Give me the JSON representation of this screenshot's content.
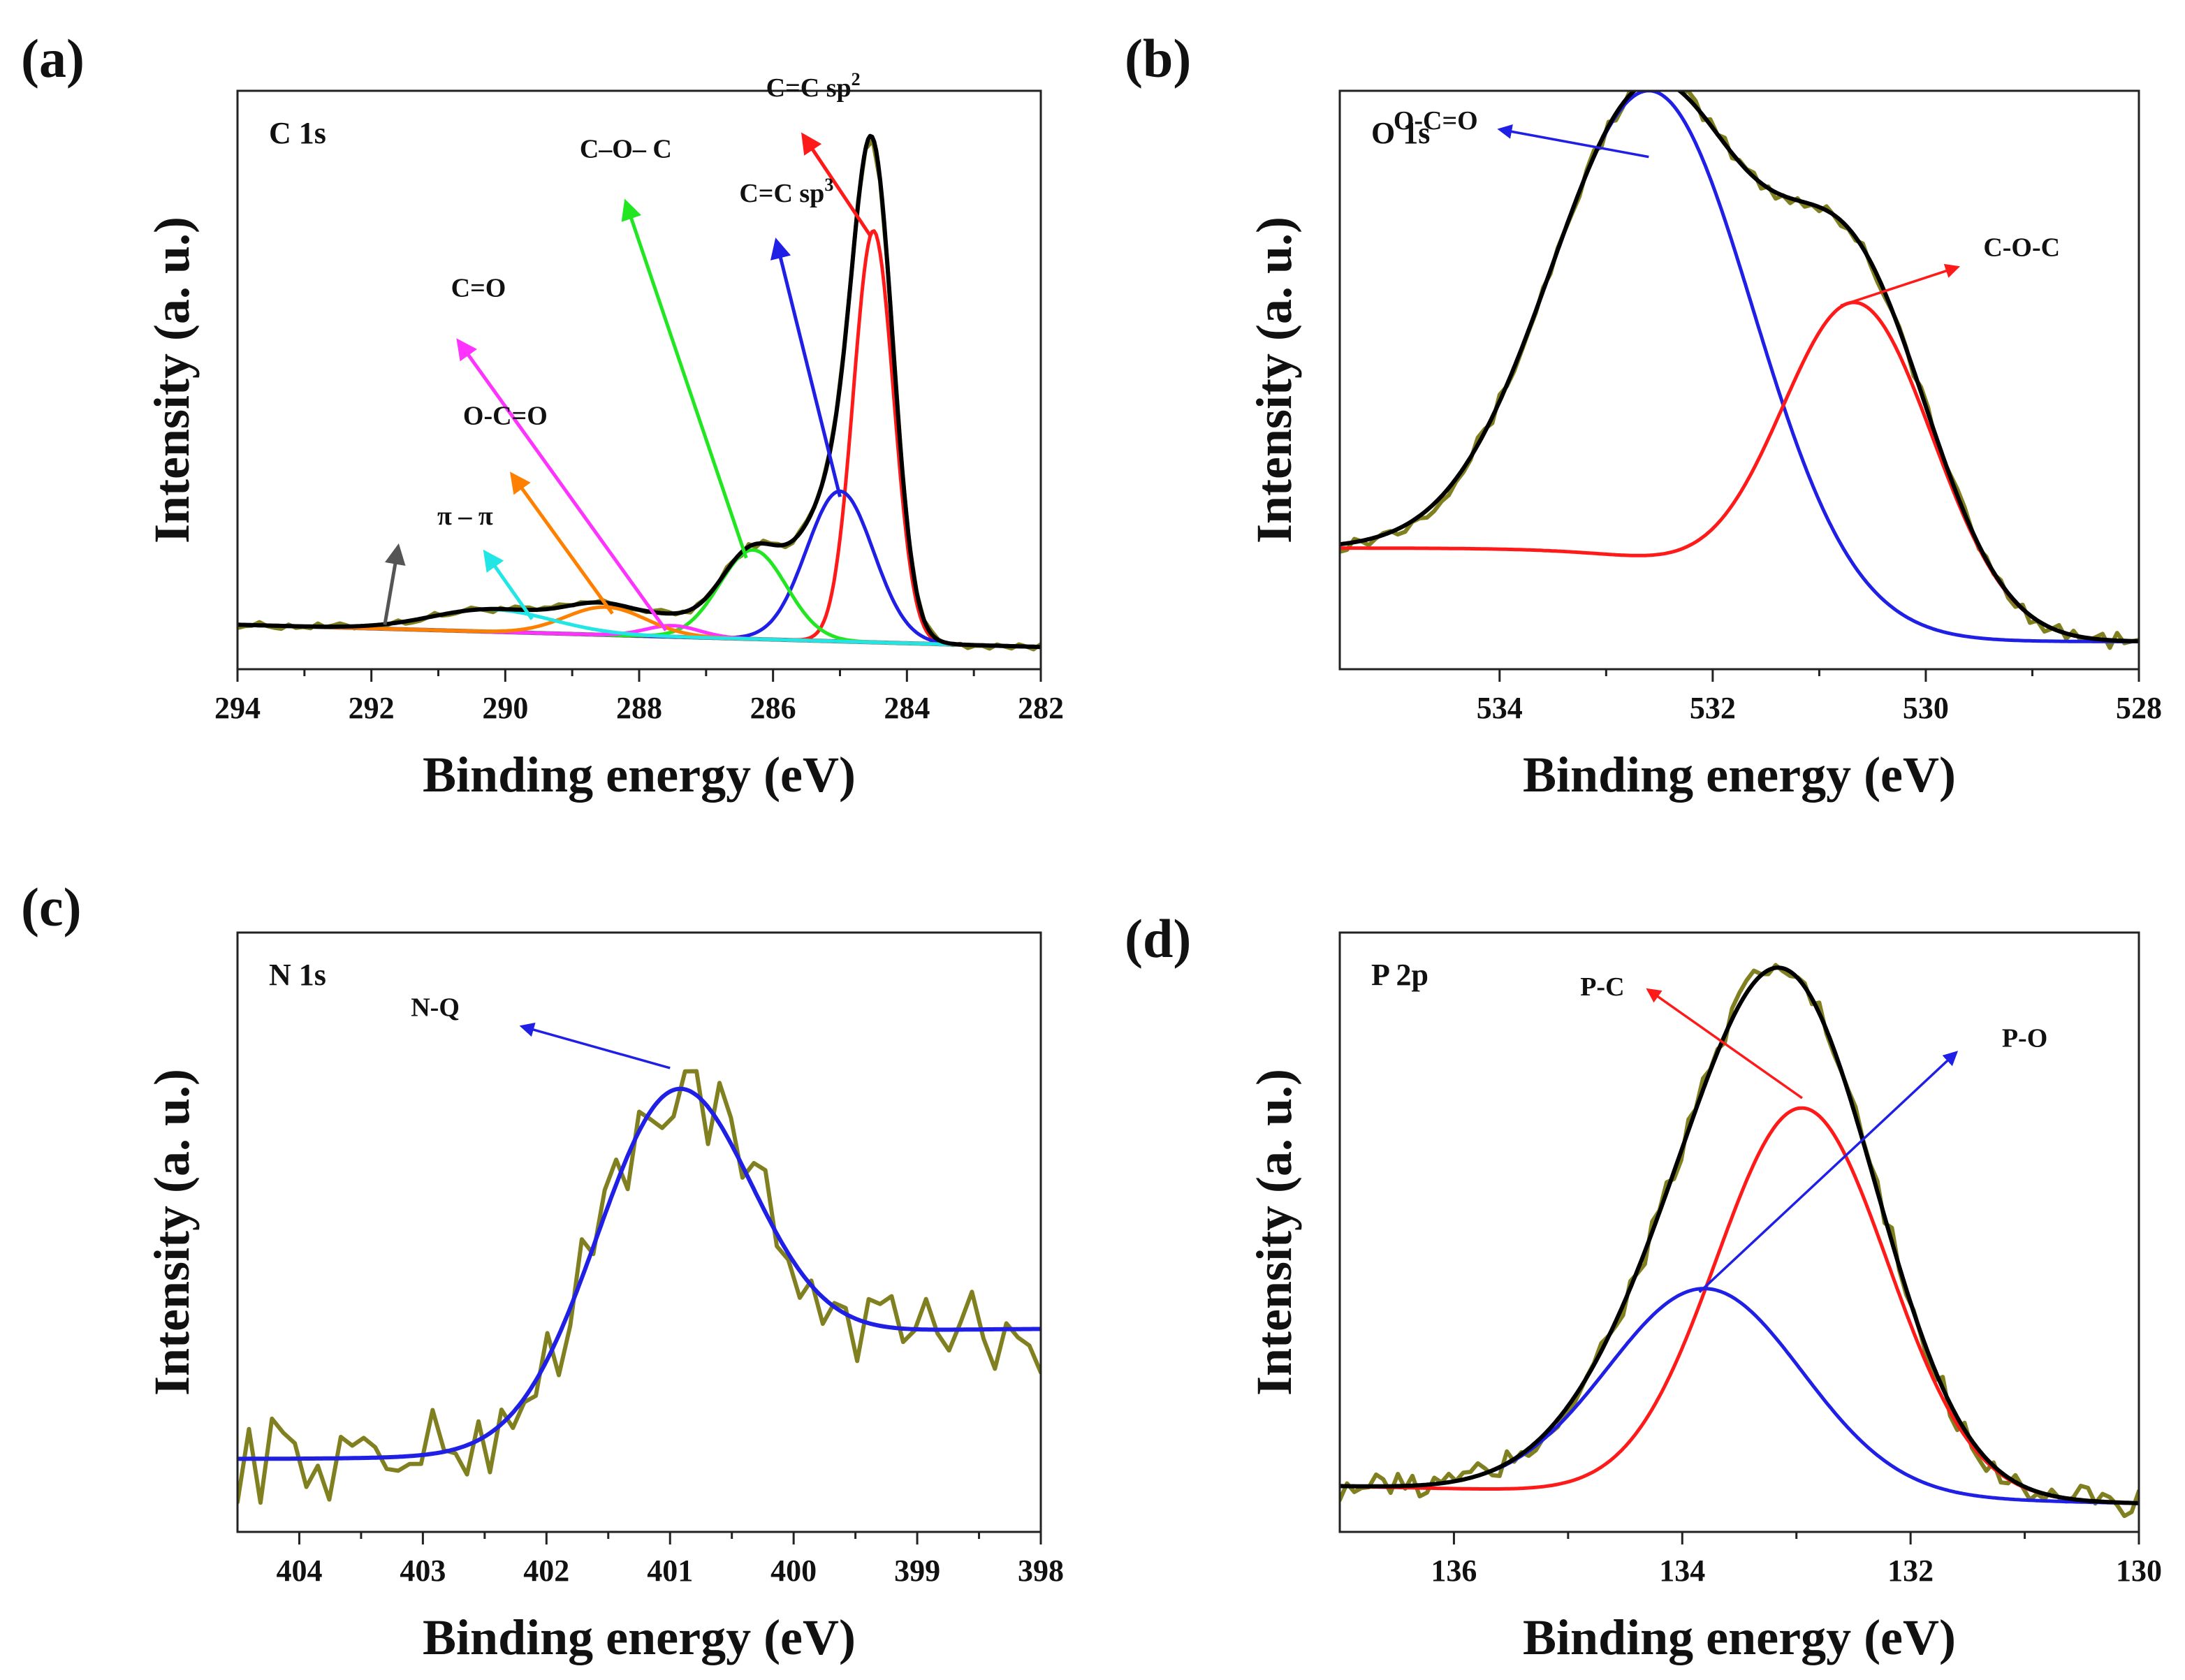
{
  "chart_data": [
    {
      "id": "a",
      "type": "line",
      "panel_label": "(a)",
      "title": "C 1s",
      "xlabel": "Binding energy (eV)",
      "ylabel": "Intensity (a. u.)",
      "xlim": [
        294,
        282
      ],
      "x_reversed": true,
      "ylim": [
        -0.04,
        1.0
      ],
      "xticks": [
        294,
        292,
        290,
        288,
        286,
        284,
        282
      ],
      "xtick_labels": [
        "294",
        "292",
        "290",
        "288",
        "286",
        "284",
        "282"
      ],
      "yticks_shown": false,
      "background": {
        "x0": 294,
        "y0": 0.04,
        "x1": 282,
        "y1": 0.0
      },
      "peaks": [
        {
          "name": "C=C sp2",
          "label": "C=C sp",
          "sup": "2",
          "center": 284.5,
          "height": 0.74,
          "sigma": 0.3,
          "color": "#ff1a1a"
        },
        {
          "name": "C=C sp3",
          "label": "C=C sp",
          "sup": "3",
          "center": 285.0,
          "height": 0.27,
          "sigma": 0.5,
          "color": "#1f1fe6"
        },
        {
          "name": "C–O– C",
          "label": "C–O– C",
          "center": 286.3,
          "height": 0.16,
          "sigma": 0.5,
          "color": "#22e622"
        },
        {
          "name": "C=O",
          "label": "C=O",
          "center": 287.5,
          "height": 0.02,
          "sigma": 0.4,
          "color": "#ff33ff"
        },
        {
          "name": "O-C=O",
          "label": "O-C=O",
          "center": 288.5,
          "height": 0.05,
          "sigma": 0.6,
          "color": "#ff8000"
        },
        {
          "name": "π – π",
          "label": "π – π",
          "center": 290.2,
          "height": 0.04,
          "sigma": 0.9,
          "color": "#22e6e6"
        }
      ],
      "envelope_color": "#000000",
      "raw_color": "#808020",
      "background_color": "#555555",
      "noise_amplitude": 0.006,
      "annotations": [
        {
          "text": "C=C sp",
          "sup": "2",
          "tx": 285.4,
          "ty": 0.99,
          "ax": 284.55,
          "ay": 0.74,
          "hx": 285.55,
          "hy": 0.92,
          "color": "#ff1a1a"
        },
        {
          "text": "C=C sp",
          "sup": "3",
          "tx": 285.8,
          "ty": 0.8,
          "ax": 285.0,
          "ay": 0.27,
          "hx": 285.95,
          "hy": 0.73,
          "color": "#1f1fe6"
        },
        {
          "text": "C–O– C",
          "tx": 288.2,
          "ty": 0.88,
          "ax": 286.4,
          "ay": 0.16,
          "hx": 288.2,
          "hy": 0.8,
          "color": "#22e622"
        },
        {
          "text": "C=O",
          "tx": 290.4,
          "ty": 0.63,
          "ax": 287.6,
          "ay": 0.03,
          "hx": 290.7,
          "hy": 0.55,
          "color": "#ff33ff"
        },
        {
          "text": "O-C=O",
          "tx": 290.0,
          "ty": 0.4,
          "ax": 288.4,
          "ay": 0.06,
          "hx": 289.9,
          "hy": 0.31,
          "color": "#ff8000"
        },
        {
          "text": "π – π",
          "tx": 290.6,
          "ty": 0.22,
          "ax": 289.6,
          "ay": 0.05,
          "hx": 290.3,
          "hy": 0.17,
          "color": "#22e6e6"
        },
        {
          "ax": 291.8,
          "ay": 0.04,
          "hx": 291.6,
          "hy": 0.18,
          "color": "#555555"
        }
      ]
    },
    {
      "id": "b",
      "type": "line",
      "panel_label": "(b)",
      "title": "O 1s",
      "xlabel": "Binding energy (eV)",
      "ylabel": "Intensity (a. u.)",
      "xlim": [
        535.5,
        528
      ],
      "x_reversed": true,
      "ylim": [
        -0.05,
        1.0
      ],
      "xticks": [
        534,
        532,
        530,
        528
      ],
      "xtick_labels": [
        "534",
        "532",
        "530",
        "528"
      ],
      "yticks_shown": false,
      "background": {
        "x0": 535.5,
        "y0": 0.17,
        "x1": 528,
        "y1": 0.0,
        "step_center": 531.8,
        "step_height": 0.17,
        "step_width": 0.5
      },
      "peaks": [
        {
          "name": "O-C=O",
          "label": "O-C=O",
          "center": 532.55,
          "height": 0.86,
          "sigma": 0.95,
          "color": "#1f1fe6"
        },
        {
          "name": "C-O-C",
          "label": "C-O-C",
          "center": 530.65,
          "height": 0.6,
          "sigma": 0.72,
          "color": "#ff1a1a"
        }
      ],
      "envelope_color": "#000000",
      "raw_color": "#808020",
      "noise_amplitude": 0.014,
      "annotations": [
        {
          "text": "O-C=O",
          "tx": 534.6,
          "ty": 0.93,
          "ax": 532.6,
          "ay": 0.88,
          "hx": 534.0,
          "hy": 0.93,
          "color": "#1f1fe6"
        },
        {
          "text": "C-O-C",
          "tx": 529.1,
          "ty": 0.7,
          "ax": 530.8,
          "ay": 0.61,
          "hx": 529.7,
          "hy": 0.68,
          "color": "#ff1a1a"
        }
      ]
    },
    {
      "id": "c",
      "type": "line",
      "panel_label": "(c)",
      "title": "N 1s",
      "xlabel": "Binding energy (eV)",
      "ylabel": "Intensity (a. u.)",
      "xlim": [
        404.5,
        398
      ],
      "x_reversed": true,
      "ylim": [
        -0.1,
        1.05
      ],
      "xticks": [
        404,
        403,
        402,
        401,
        400,
        399,
        398
      ],
      "xtick_labels": [
        "404",
        "403",
        "402",
        "401",
        "400",
        "399",
        "398"
      ],
      "yticks_shown": false,
      "background": {
        "x0": 404.5,
        "y0": 0.04,
        "x1": 398,
        "y1": 0.29,
        "step_center": 401.0,
        "step_height": 0.17,
        "step_width": 0.5
      },
      "peaks": [
        {
          "name": "N-Q",
          "label": "N-Q",
          "center": 401.0,
          "height": 0.58,
          "sigma": 0.62,
          "color": "#1f1fe6",
          "envelope_only": true
        }
      ],
      "envelope_color": "#1f1fe6",
      "raw_color": "#808020",
      "noise_amplitude": 0.085,
      "annotations": [
        {
          "text": "N-Q",
          "tx": 402.9,
          "ty": 0.89,
          "ax": 401.0,
          "ay": 0.79,
          "hx": 402.2,
          "hy": 0.87,
          "color": "#1f1fe6"
        }
      ]
    },
    {
      "id": "d",
      "type": "line",
      "panel_label": "(d)",
      "title": "P 2p",
      "xlabel": "Binding energy (eV)",
      "ylabel": "Intensity (a. u.)",
      "xlim": [
        137,
        130
      ],
      "x_reversed": true,
      "ylim": [
        -0.05,
        1.0
      ],
      "xticks": [
        136,
        134,
        132,
        130
      ],
      "xtick_labels": [
        "136",
        "134",
        "132",
        "130"
      ],
      "yticks_shown": false,
      "background": {
        "x0": 137,
        "y0": 0.03,
        "x1": 130,
        "y1": 0.0
      },
      "peaks": [
        {
          "name": "P-C",
          "label": "P-C",
          "center": 132.95,
          "height": 0.68,
          "sigma": 0.75,
          "color": "#ff1a1a"
        },
        {
          "name": "P-O",
          "label": "P-O",
          "center": 133.8,
          "height": 0.36,
          "sigma": 0.85,
          "color": "#1f1fe6"
        }
      ],
      "envelope_color": "#000000",
      "raw_color": "#808020",
      "noise_amplitude": 0.025,
      "annotations": [
        {
          "text": "P-C",
          "tx": 134.7,
          "ty": 0.89,
          "ax": 132.95,
          "ay": 0.71,
          "hx": 134.3,
          "hy": 0.9,
          "color": "#ff1a1a"
        },
        {
          "text": "P-O",
          "tx": 131.0,
          "ty": 0.8,
          "ax": 133.85,
          "ay": 0.37,
          "hx": 131.6,
          "hy": 0.79,
          "color": "#1f1fe6"
        }
      ]
    }
  ]
}
